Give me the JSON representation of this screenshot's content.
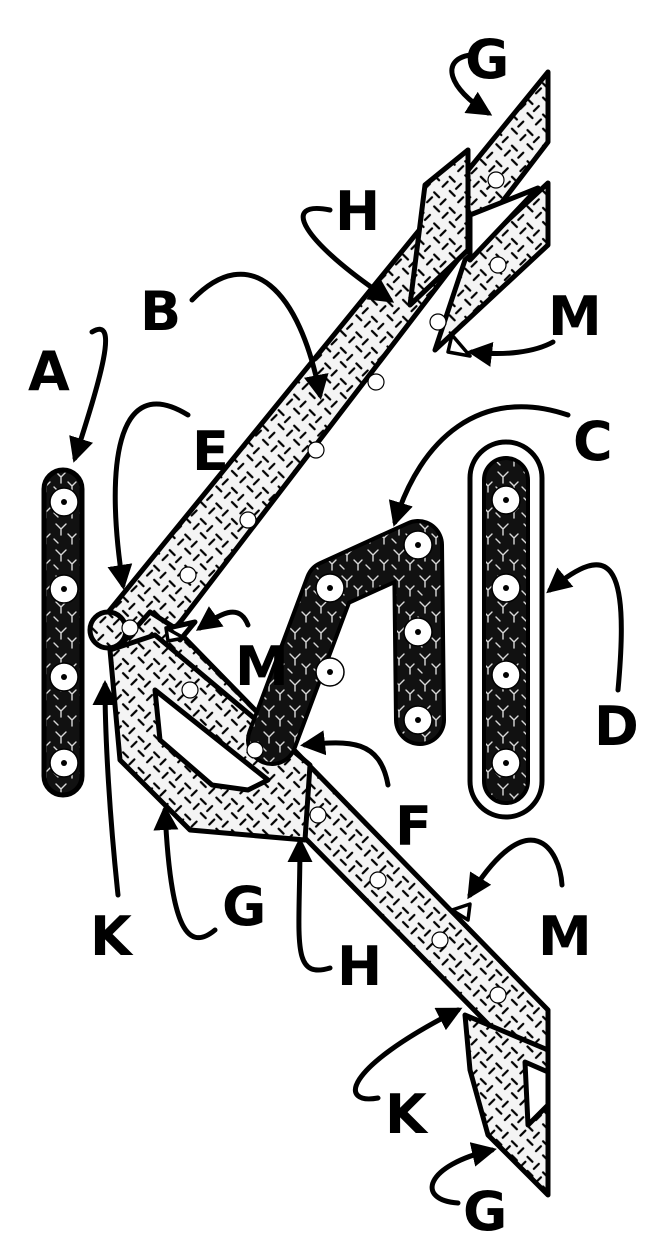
{
  "labels": {
    "A": "A",
    "B": "B",
    "C": "C",
    "D": "D",
    "E": "E",
    "F": "F",
    "G": "G",
    "H": "H",
    "K": "K",
    "M": "M"
  },
  "colors": {
    "outline": "#000000",
    "background": "#ffffff",
    "light_fill": "#f2f2f2",
    "dark_fill": "#111111",
    "marker": "#ffffff"
  }
}
